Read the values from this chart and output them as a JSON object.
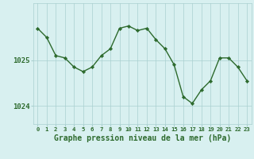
{
  "hours": [
    0,
    1,
    2,
    3,
    4,
    5,
    6,
    7,
    8,
    9,
    10,
    11,
    12,
    13,
    14,
    15,
    16,
    17,
    18,
    19,
    20,
    21,
    22,
    23
  ],
  "pressure": [
    1025.7,
    1025.5,
    1025.1,
    1025.05,
    1024.85,
    1024.75,
    1024.85,
    1025.1,
    1025.25,
    1025.7,
    1025.75,
    1025.65,
    1025.7,
    1025.45,
    1025.25,
    1024.9,
    1024.2,
    1024.05,
    1024.35,
    1024.55,
    1025.05,
    1025.05,
    1024.85,
    1024.55
  ],
  "line_color": "#2d6a2d",
  "marker_color": "#2d6a2d",
  "bg_color": "#d8f0f0",
  "grid_color": "#aacfcf",
  "axis_color": "#2d6a2d",
  "title": "Graphe pression niveau de la mer (hPa)",
  "title_fontsize": 7.0,
  "xtick_fontsize": 5.2,
  "ytick_fontsize": 6.5,
  "ytick_labels": [
    "1024",
    "1025"
  ],
  "ytick_values": [
    1024.0,
    1025.0
  ],
  "ylim": [
    1023.6,
    1026.25
  ],
  "xlim": [
    -0.5,
    23.5
  ]
}
